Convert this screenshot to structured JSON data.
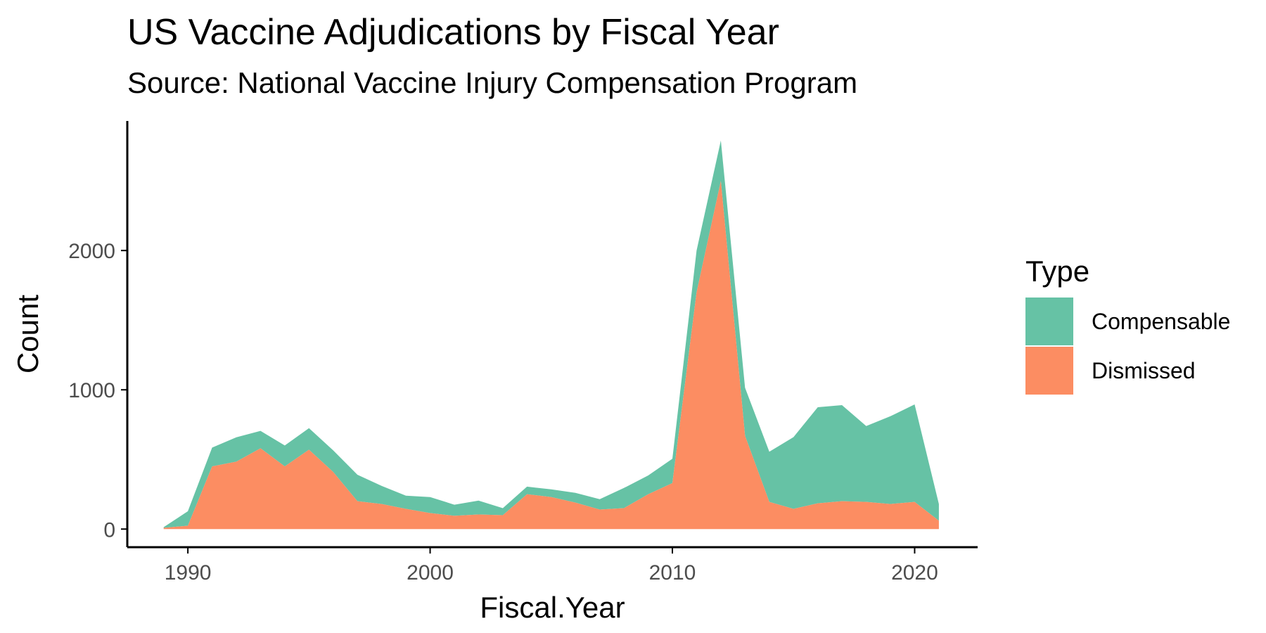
{
  "colors": {
    "compensable": "#66c2a5",
    "dismissed": "#fc8d62",
    "axis": "#000000",
    "tick_text": "#4d4d4d"
  },
  "chart_data": {
    "type": "area",
    "stacked": true,
    "title": "US Vaccine Adjudications by Fiscal Year",
    "subtitle": "Source: National Vaccine Injury Compensation Program",
    "xlabel": "Fiscal.Year",
    "ylabel": "Count",
    "x": [
      1989,
      1990,
      1991,
      1992,
      1993,
      1994,
      1995,
      1996,
      1997,
      1998,
      1999,
      2000,
      2001,
      2002,
      2003,
      2004,
      2005,
      2006,
      2007,
      2008,
      2009,
      2010,
      2011,
      2012,
      2013,
      2014,
      2015,
      2016,
      2017,
      2018,
      2019,
      2020,
      2021
    ],
    "series": [
      {
        "name": "Dismissed",
        "values": [
          9,
          24,
          450,
          484,
          580,
          450,
          570,
          410,
          200,
          180,
          145,
          115,
          95,
          105,
          100,
          250,
          230,
          190,
          140,
          150,
          250,
          330,
          1700,
          2500,
          670,
          195,
          145,
          185,
          200,
          195,
          180,
          195,
          60
        ]
      },
      {
        "name": "Compensable",
        "values": [
          5,
          104,
          135,
          175,
          125,
          150,
          155,
          155,
          190,
          130,
          95,
          115,
          80,
          100,
          50,
          55,
          55,
          70,
          75,
          145,
          135,
          175,
          300,
          290,
          345,
          360,
          515,
          690,
          690,
          545,
          630,
          700,
          120
        ]
      }
    ],
    "xlim": [
      1987.5,
      2022.6
    ],
    "ylim": [
      -130,
      2930
    ],
    "x_ticks": [
      1990,
      2000,
      2010,
      2020
    ],
    "y_ticks": [
      0,
      1000,
      2000
    ],
    "grid": false,
    "legend": {
      "title": "Type",
      "position": "right",
      "entries": [
        "Compensable",
        "Dismissed"
      ]
    }
  }
}
